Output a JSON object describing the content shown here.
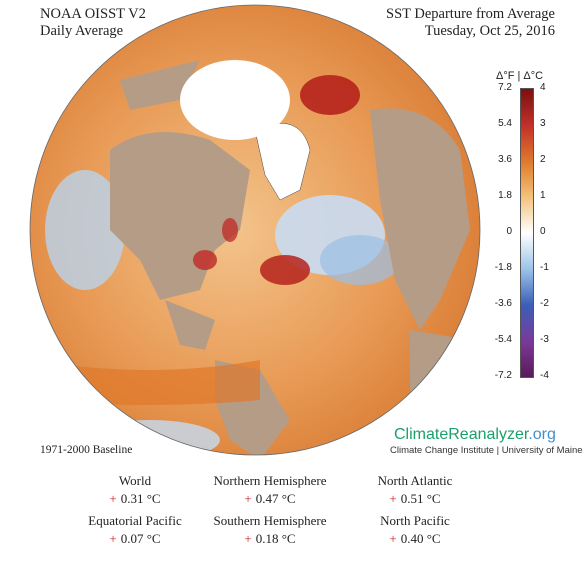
{
  "header": {
    "title_left_1": "NOAA OISST V2",
    "title_left_2": "Daily Average",
    "title_right_1": "SST Departure from Average",
    "title_right_2": "Tuesday, Oct 25, 2016"
  },
  "legend": {
    "title": "Δ°F | Δ°C",
    "ticks_f": [
      "7.2",
      "5.4",
      "3.6",
      "1.8",
      "0",
      "-1.8",
      "-3.6",
      "-5.4",
      "-7.2"
    ],
    "ticks_c": [
      "4",
      "3",
      "2",
      "1",
      "0",
      "-1",
      "-2",
      "-3",
      "-4"
    ],
    "colors": [
      "#5a1a5a",
      "#7a3a9a",
      "#3a5fb8",
      "#9cc3ea",
      "#ffffff",
      "#f4c27a",
      "#e0782a",
      "#c0302a",
      "#7a1010"
    ]
  },
  "baseline": "1971-2000 Baseline",
  "logo": {
    "name": "ClimateReanalyzer",
    "tld": ".org",
    "sub": "Climate Change Institute | University of Maine"
  },
  "stats": [
    {
      "name": "World",
      "sign": "+",
      "value": "0.31 °C"
    },
    {
      "name": "Northern Hemisphere",
      "sign": "+",
      "value": "0.47 °C"
    },
    {
      "name": "North Atlantic",
      "sign": "+",
      "value": "0.51 °C"
    },
    {
      "name": "Equatorial Pacific",
      "sign": "+",
      "value": "0.07 °C"
    },
    {
      "name": "Southern Hemisphere",
      "sign": "+",
      "value": "0.18 °C"
    },
    {
      "name": "North Pacific",
      "sign": "+",
      "value": "0.40 °C"
    }
  ]
}
